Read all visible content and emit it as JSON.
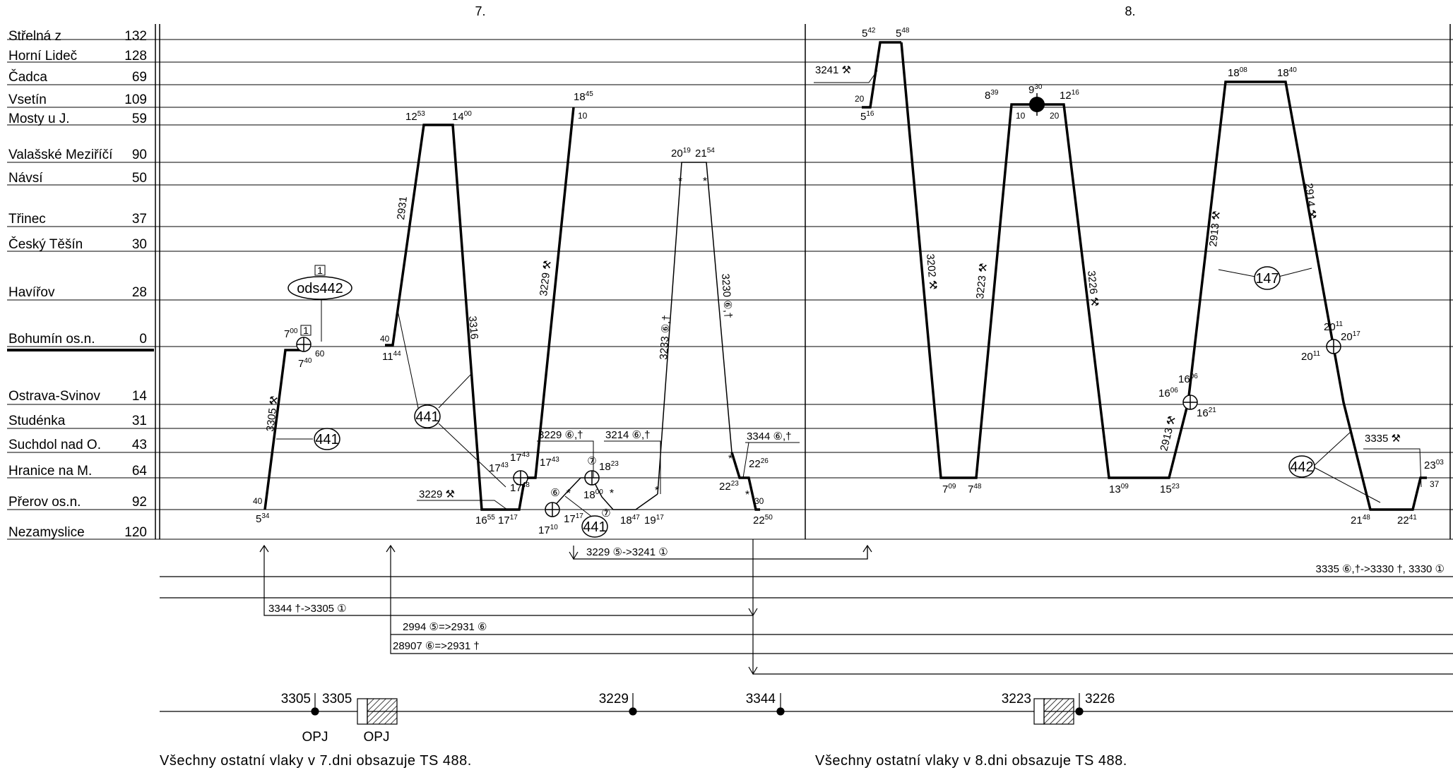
{
  "days": [
    "7.",
    "8."
  ],
  "stations": [
    {
      "name": "Střelná z",
      "km": "132"
    },
    {
      "name": "Horní Lideč",
      "km": "128"
    },
    {
      "name": "Čadca",
      "km": "69"
    },
    {
      "name": "Vsetín",
      "km": "109"
    },
    {
      "name": "Mosty u J.",
      "km": "59"
    },
    {
      "name": "Valašské Meziříčí",
      "km": "90"
    },
    {
      "name": "Návsí",
      "km": "50"
    },
    {
      "name": "Třinec",
      "km": "37"
    },
    {
      "name": "Český Těšín",
      "km": "30"
    },
    {
      "name": "Havířov",
      "km": "28"
    },
    {
      "name": "Bohumín os.n.",
      "km": "0"
    },
    {
      "name": "Ostrava-Svinov",
      "km": "14"
    },
    {
      "name": "Studénka",
      "km": "31"
    },
    {
      "name": "Suchdol nad O.",
      "km": "43"
    },
    {
      "name": "Hranice na M.",
      "km": "64"
    },
    {
      "name": "Přerov os.n.",
      "km": "92"
    },
    {
      "name": "Nezamyslice",
      "km": "120"
    }
  ],
  "trains": [
    {
      "number": "3305",
      "mark": "⚒"
    },
    {
      "number": "2931",
      "mark": ""
    },
    {
      "number": "3316",
      "mark": ""
    },
    {
      "number": "3229",
      "mark": "⚒"
    },
    {
      "number": "3233",
      "mark": "⑥,†"
    },
    {
      "number": "3230",
      "mark": "⑥,†"
    },
    {
      "number": "3202",
      "mark": "⚒"
    },
    {
      "number": "3223",
      "mark": "⚒"
    },
    {
      "number": "3226",
      "mark": "⚒"
    },
    {
      "number": "2913",
      "mark": "⚒"
    },
    {
      "number": "2914",
      "mark": "⚒"
    },
    {
      "number": "2913",
      "mark": "⚒"
    }
  ],
  "flags": [
    {
      "number": "3229",
      "mark": "⚒"
    },
    {
      "number": "3229",
      "mark": "⑥,†"
    },
    {
      "number": "3214",
      "mark": "⑥,†"
    },
    {
      "number": "3344",
      "mark": "⑥,†"
    },
    {
      "number": "3241",
      "mark": "⚒"
    },
    {
      "number": "3335",
      "mark": "⚒"
    }
  ],
  "circles": [
    "ods442",
    "441",
    "441",
    "441",
    "147",
    "442"
  ],
  "boxed": [
    "1",
    "1"
  ],
  "small_circled": [
    "⑥",
    "⑦",
    "⑦"
  ],
  "times": {
    "t_534": {
      "h": "5",
      "m": "34"
    },
    "t_40a": {
      "h": "",
      "m": "40"
    },
    "t_700": {
      "h": "7",
      "m": "00"
    },
    "t_740": {
      "h": "7",
      "m": "40"
    },
    "t_60": {
      "h": "",
      "m": "60"
    },
    "t_40b": {
      "h": "",
      "m": "40"
    },
    "t_1144": {
      "h": "11",
      "m": "44"
    },
    "t_1253": {
      "h": "12",
      "m": "53"
    },
    "t_1400": {
      "h": "14",
      "m": "00"
    },
    "t_1655": {
      "h": "16",
      "m": "55"
    },
    "t_1717a": {
      "h": "17",
      "m": "17"
    },
    "t_1845": {
      "h": "18",
      "m": "45"
    },
    "t_10a": {
      "h": "",
      "m": "10"
    },
    "t_1743a": {
      "h": "17",
      "m": "43"
    },
    "t_1743b": {
      "h": "17",
      "m": "43"
    },
    "t_1743c": {
      "h": "17",
      "m": "43"
    },
    "t_1748": {
      "h": "17",
      "m": "48"
    },
    "t_1710": {
      "h": "17",
      "m": "10"
    },
    "t_1717b": {
      "h": "17",
      "m": "17"
    },
    "t_1823": {
      "h": "18",
      "m": "23"
    },
    "t_1800": {
      "h": "18",
      "m": "00"
    },
    "t_1847": {
      "h": "18",
      "m": "47"
    },
    "t_1917": {
      "h": "19",
      "m": "17"
    },
    "t_2019": {
      "h": "20",
      "m": "19"
    },
    "t_2154": {
      "h": "21",
      "m": "54"
    },
    "t_2223": {
      "h": "22",
      "m": "23"
    },
    "t_2226": {
      "h": "22",
      "m": "26"
    },
    "t_30": {
      "h": "",
      "m": "30"
    },
    "t_2250": {
      "h": "22",
      "m": "50"
    },
    "t_542": {
      "h": "5",
      "m": "42"
    },
    "t_548": {
      "h": "5",
      "m": "48"
    },
    "t_20a": {
      "h": "",
      "m": "20"
    },
    "t_516": {
      "h": "5",
      "m": "16"
    },
    "t_839": {
      "h": "8",
      "m": "39"
    },
    "t_930": {
      "h": "9",
      "m": "30"
    },
    "t_1216": {
      "h": "12",
      "m": "16"
    },
    "t_10b": {
      "h": "",
      "m": "10"
    },
    "t_20b": {
      "h": "",
      "m": "20"
    },
    "t_709": {
      "h": "7",
      "m": "09"
    },
    "t_748": {
      "h": "7",
      "m": "48"
    },
    "t_1309": {
      "h": "13",
      "m": "09"
    },
    "t_1523": {
      "h": "15",
      "m": "23"
    },
    "t_1606": {
      "h": "16",
      "m": "06"
    },
    "t_1606b": {
      "h": "16",
      "m": "06"
    },
    "t_1621": {
      "h": "16",
      "m": "21"
    },
    "t_1808": {
      "h": "18",
      "m": "08"
    },
    "t_1840": {
      "h": "18",
      "m": "40"
    },
    "t_2011a": {
      "h": "20",
      "m": "11"
    },
    "t_2017": {
      "h": "20",
      "m": "17"
    },
    "t_2011b": {
      "h": "20",
      "m": "11"
    },
    "t_2148": {
      "h": "21",
      "m": "48"
    },
    "t_2241": {
      "h": "22",
      "m": "41"
    },
    "t_2303": {
      "h": "23",
      "m": "03"
    },
    "t_37": {
      "h": "",
      "m": "37"
    }
  },
  "transfers": [
    "3229 ⑤->3241 ①",
    "3335 ⑥,†->3330 †, 3330 ①",
    "3344 †->3305 ①",
    "2994 ⑤=>2931 ⑥",
    "28907 ⑥=>2931 †"
  ],
  "depot": {
    "labels": [
      "3305",
      "3305",
      "3229",
      "3344",
      "3223",
      "3226"
    ],
    "opj": [
      "OPJ",
      "OPJ"
    ]
  },
  "footnotes": [
    "Všechny ostatní vlaky v 7.dni obsazuje TS 488.",
    "Všechny ostatní vlaky v 8.dni obsazuje TS 488."
  ]
}
